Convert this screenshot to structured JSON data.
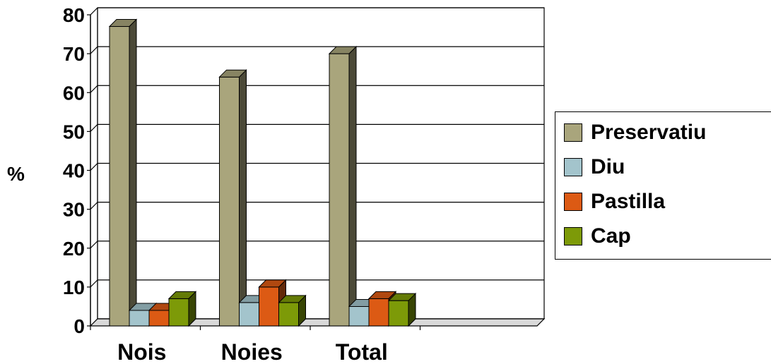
{
  "chart_data": {
    "type": "bar",
    "title": "",
    "xlabel": "",
    "ylabel": "%",
    "ylim": [
      0,
      80
    ],
    "yticks": [
      0,
      10,
      20,
      30,
      40,
      50,
      60,
      70,
      80
    ],
    "grid": true,
    "legend_position": "right",
    "categories": [
      "Nois",
      "Noies",
      "Total"
    ],
    "series": [
      {
        "name": "Preservatiu",
        "color": "#a9a57c",
        "values": [
          77,
          64,
          70
        ]
      },
      {
        "name": "Diu",
        "color": "#a3c4cc",
        "values": [
          4,
          6,
          5
        ]
      },
      {
        "name": "Pastilla",
        "color": "#dc5a14",
        "values": [
          4,
          10,
          7
        ]
      },
      {
        "name": "Cap",
        "color": "#7d9a08",
        "values": [
          7,
          6,
          6.5
        ]
      }
    ]
  }
}
